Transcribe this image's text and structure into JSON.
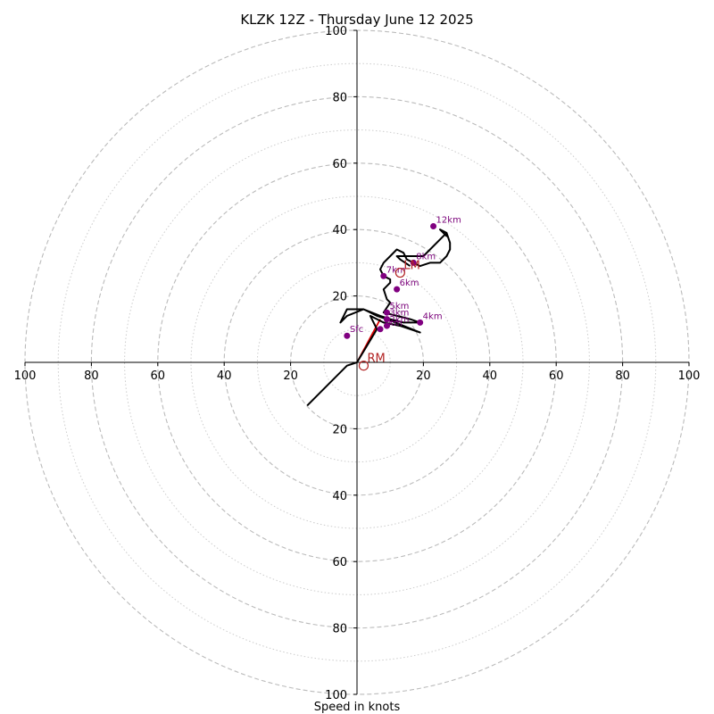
{
  "chart_data": {
    "type": "line",
    "title": "KLZK 12Z - Thursday June 12 2025",
    "xlabel": "Speed in knots",
    "ylabel": "",
    "axis_range_knots": [
      -100,
      100
    ],
    "ring_major_knots": [
      20,
      40,
      60,
      80,
      100
    ],
    "ring_minor_knots": [
      10,
      30,
      50,
      70,
      90
    ],
    "x_ticks": [
      "100",
      "80",
      "60",
      "40",
      "20",
      "20",
      "40",
      "60",
      "80",
      "100"
    ],
    "y_ticks": [
      "100",
      "80",
      "60",
      "40",
      "20",
      "20",
      "40",
      "60",
      "80",
      "100"
    ],
    "grid": true,
    "hodograph": {
      "name": "",
      "color": "#000000",
      "points_uv_knots": [
        [
          -15,
          -13
        ],
        [
          -8,
          -6
        ],
        [
          -3,
          -1
        ],
        [
          0,
          0
        ],
        [
          3,
          5
        ],
        [
          6,
          10
        ],
        [
          4,
          14
        ],
        [
          8,
          12
        ],
        [
          13,
          11
        ],
        [
          19,
          9
        ],
        [
          14,
          11
        ],
        [
          9,
          13
        ],
        [
          6,
          14
        ],
        [
          2,
          16
        ],
        [
          -3,
          16
        ],
        [
          -5,
          12
        ],
        [
          -3,
          14
        ],
        [
          2,
          16
        ],
        [
          7,
          14
        ],
        [
          10,
          13
        ],
        [
          14,
          12
        ],
        [
          19,
          12
        ],
        [
          16,
          13
        ],
        [
          12,
          14
        ],
        [
          8,
          15
        ],
        [
          10,
          18
        ],
        [
          9,
          19
        ],
        [
          8,
          22
        ],
        [
          10,
          24
        ],
        [
          10,
          25
        ],
        [
          8,
          26
        ],
        [
          7,
          28
        ],
        [
          8,
          30
        ],
        [
          10,
          32
        ],
        [
          12,
          34
        ],
        [
          14,
          33
        ],
        [
          15,
          31
        ],
        [
          17,
          30
        ],
        [
          19,
          29
        ],
        [
          22,
          30
        ],
        [
          25,
          30
        ],
        [
          27,
          32
        ],
        [
          28,
          34
        ],
        [
          28,
          36
        ],
        [
          27,
          39
        ],
        [
          25,
          40
        ],
        [
          27,
          38
        ],
        [
          27,
          39
        ],
        [
          20,
          32
        ],
        [
          17,
          32
        ],
        [
          12,
          32
        ],
        [
          13,
          31
        ],
        [
          16,
          29
        ]
      ]
    },
    "height_markers": [
      {
        "label": "Sfc",
        "u": -3,
        "v": 8
      },
      {
        "label": "1km",
        "u": 7,
        "v": 10
      },
      {
        "label": "2km",
        "u": 9,
        "v": 11
      },
      {
        "label": "3km",
        "u": 9,
        "v": 13
      },
      {
        "label": "4km",
        "u": 19,
        "v": 12
      },
      {
        "label": "5km",
        "u": 9,
        "v": 15
      },
      {
        "label": "6km",
        "u": 12,
        "v": 22
      },
      {
        "label": "7km",
        "u": 8,
        "v": 26
      },
      {
        "label": "8km",
        "u": 17,
        "v": 30
      },
      {
        "label": "12km",
        "u": 23,
        "v": 41
      }
    ],
    "storm_motion": [
      {
        "label": "RM",
        "u": 2,
        "v": -1
      },
      {
        "label": "LM",
        "u": 13,
        "v": 27
      }
    ],
    "shear_vector": {
      "from": [
        0,
        0
      ],
      "to": [
        7,
        13
      ],
      "color": "#dd0000"
    },
    "colors": {
      "hodograph": "#000000",
      "markers": "#800080",
      "storm_motion": "#b22222",
      "major_grid": "#bbbbbb",
      "minor_grid": "#cccccc"
    }
  }
}
